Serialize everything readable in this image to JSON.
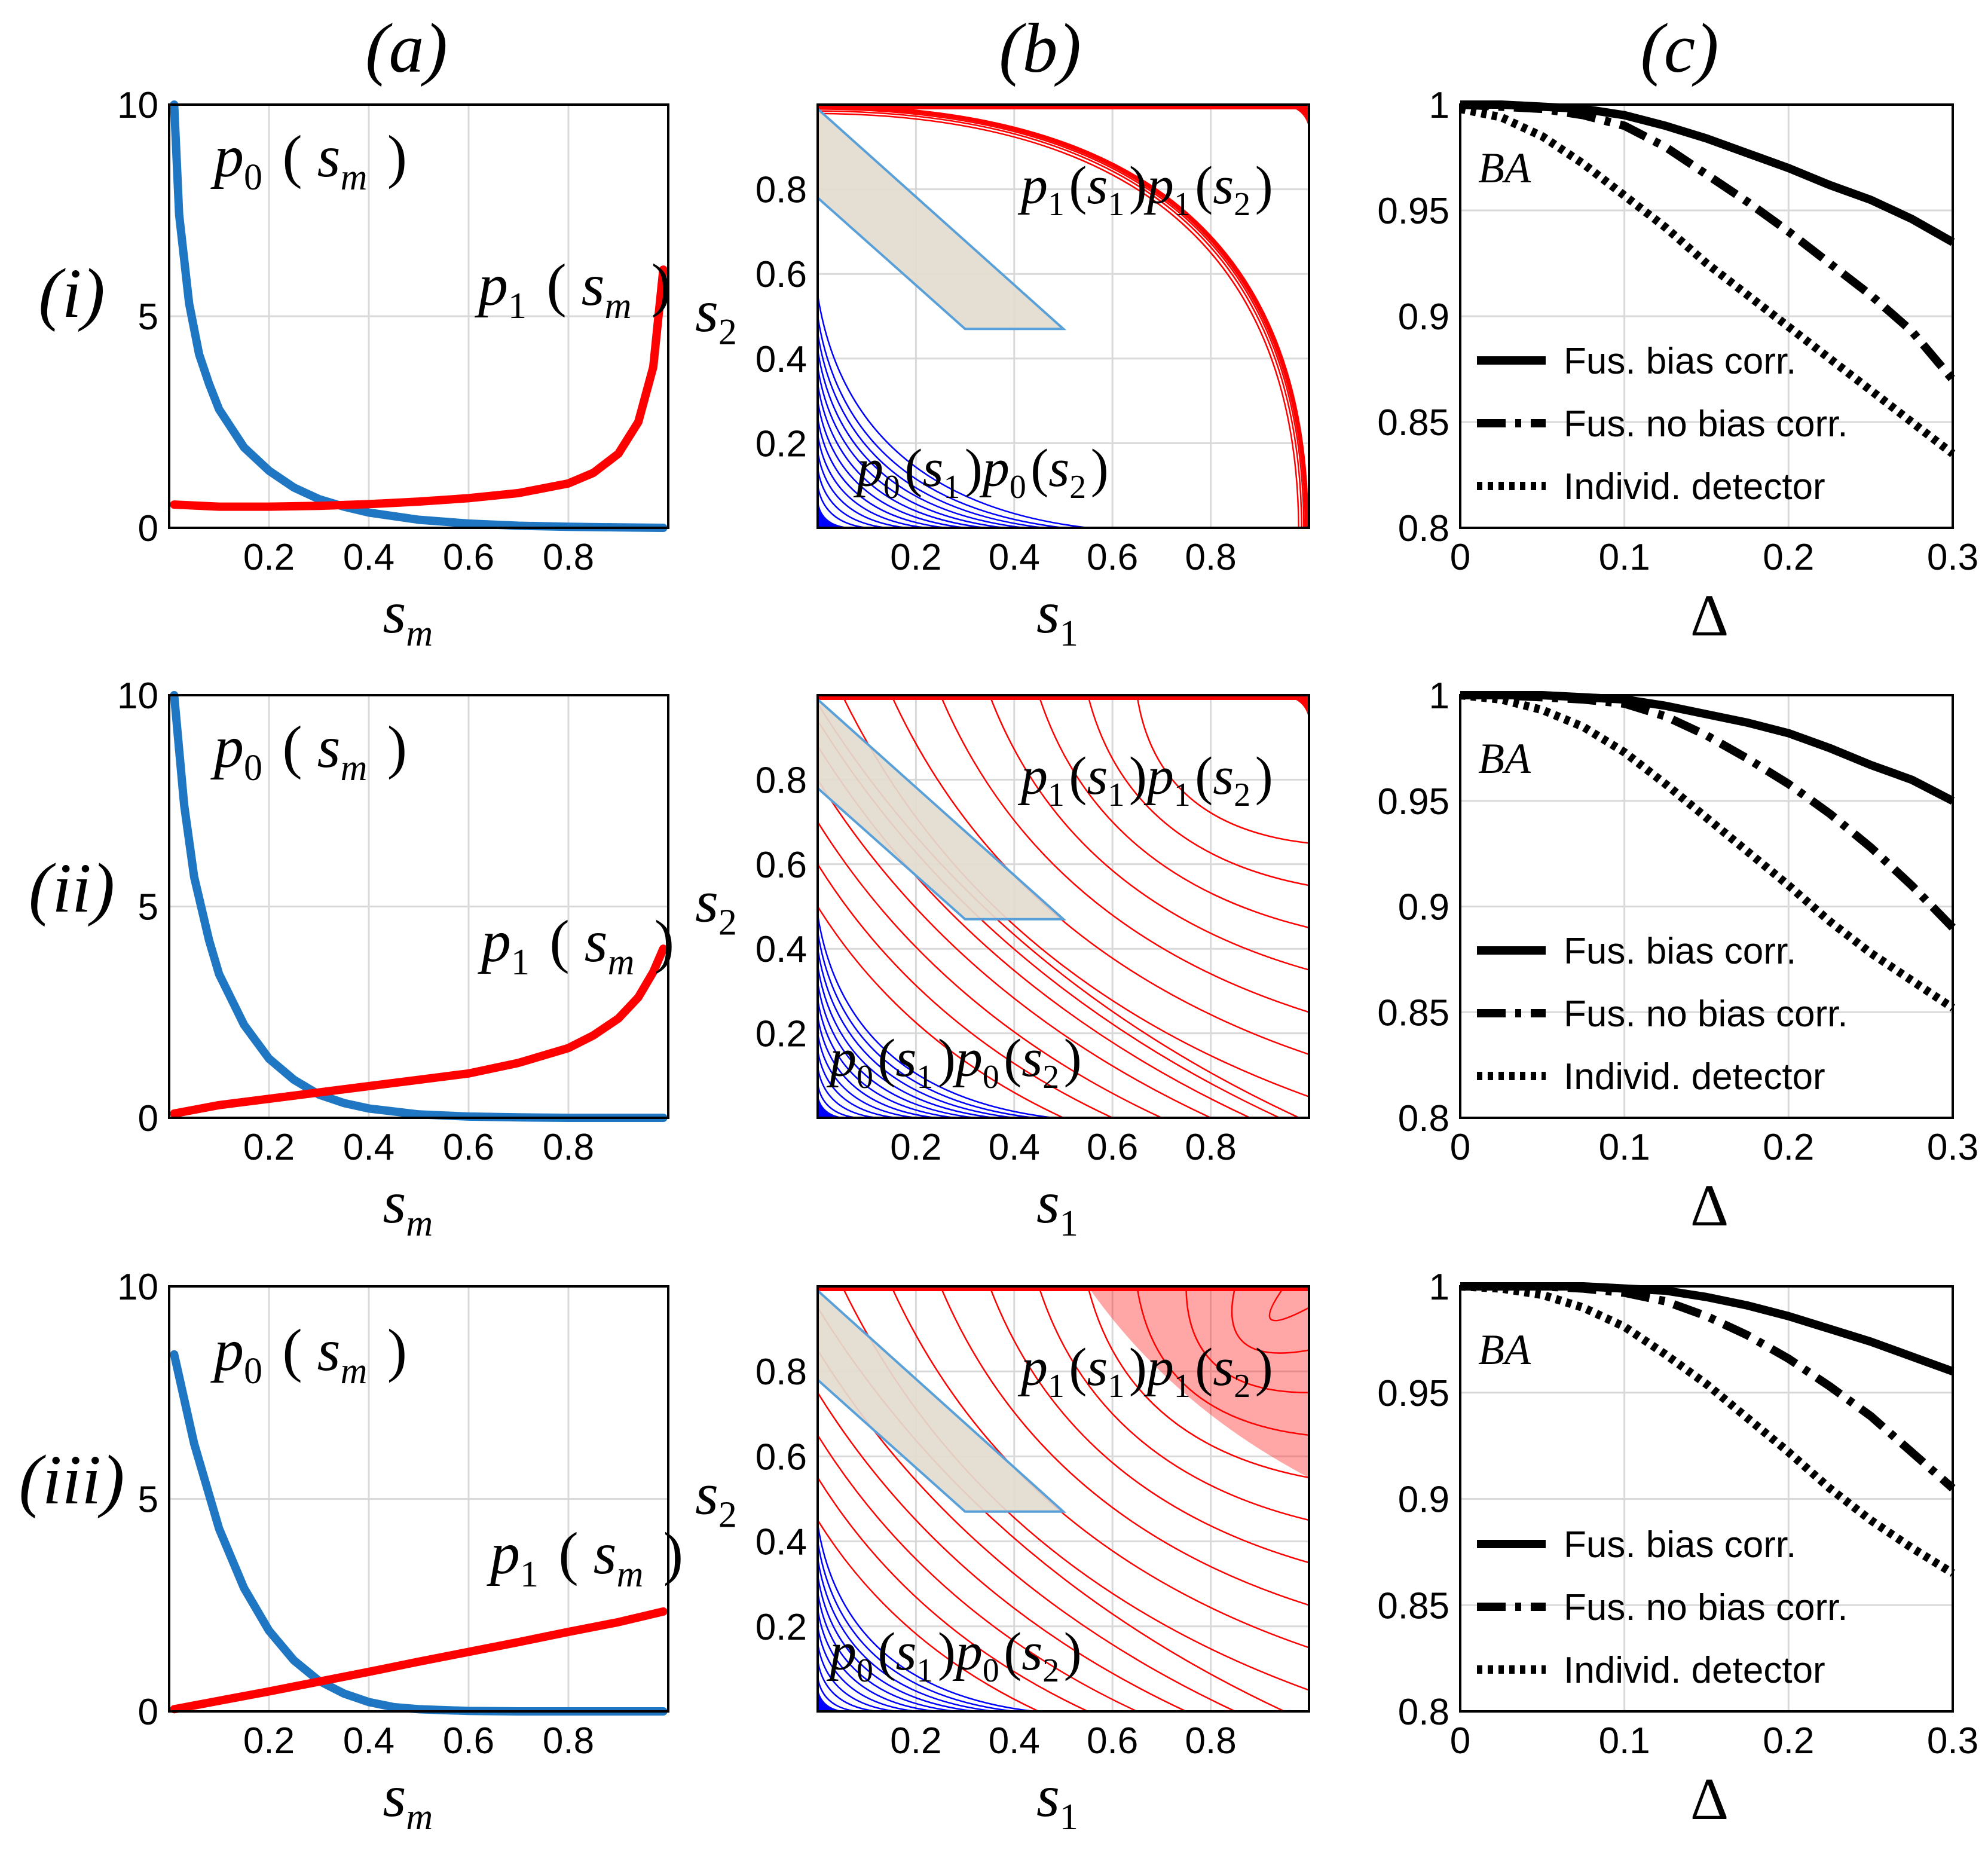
{
  "figure": {
    "column_labels": [
      "(a)",
      "(b)",
      "(c)"
    ],
    "row_labels": [
      "(i)",
      "(ii)",
      "(iii)"
    ]
  },
  "colors": {
    "p0": "#1f77c4",
    "p1": "#ff0000",
    "contour_p0": "#0000ff",
    "contour_p1": "#ff0000",
    "region_fill": "#e3dccf",
    "region_edge": "#5aa0d8",
    "grid": "#d9d9d9",
    "axis": "#000000",
    "curve": "#000000"
  },
  "chart_data": [
    {
      "id": "a_i",
      "type": "line",
      "xlabel": "s_m",
      "ylabel": "",
      "xlim": [
        0,
        1
      ],
      "ylim": [
        0,
        10
      ],
      "xticks": [
        0.2,
        0.4,
        0.6,
        0.8
      ],
      "xtick_labels": [
        "0.2",
        "0.4",
        "0.6",
        "0.8"
      ],
      "yticks": [
        0,
        5,
        10
      ],
      "ytick_labels": [
        "0",
        "5",
        "10"
      ],
      "series": [
        {
          "name": "p0(s_m)",
          "color_key": "p0",
          "x": [
            0.01,
            0.02,
            0.04,
            0.06,
            0.08,
            0.1,
            0.15,
            0.2,
            0.25,
            0.3,
            0.35,
            0.4,
            0.5,
            0.6,
            0.7,
            0.8,
            0.9,
            0.99
          ],
          "y": [
            10,
            7.4,
            5.3,
            4.1,
            3.4,
            2.8,
            1.9,
            1.35,
            0.95,
            0.68,
            0.5,
            0.36,
            0.19,
            0.1,
            0.05,
            0.025,
            0.01,
            0.0
          ]
        },
        {
          "name": "p1(s_m)",
          "color_key": "p1",
          "x": [
            0.01,
            0.1,
            0.2,
            0.3,
            0.4,
            0.5,
            0.6,
            0.7,
            0.8,
            0.85,
            0.9,
            0.94,
            0.97,
            0.99
          ],
          "y": [
            0.55,
            0.5,
            0.5,
            0.52,
            0.56,
            0.62,
            0.7,
            0.82,
            1.05,
            1.3,
            1.75,
            2.5,
            3.8,
            6.1
          ]
        }
      ],
      "annotations": [
        "p0(s_m)",
        "p1(s_m)"
      ]
    },
    {
      "id": "a_ii",
      "type": "line",
      "xlabel": "s_m",
      "ylabel": "",
      "xlim": [
        0,
        1
      ],
      "ylim": [
        0,
        10
      ],
      "xticks": [
        0.2,
        0.4,
        0.6,
        0.8
      ],
      "xtick_labels": [
        "0.2",
        "0.4",
        "0.6",
        "0.8"
      ],
      "yticks": [
        0,
        5,
        10
      ],
      "ytick_labels": [
        "0",
        "5",
        "10"
      ],
      "series": [
        {
          "name": "p0(s_m)",
          "color_key": "p0",
          "x": [
            0.01,
            0.03,
            0.05,
            0.08,
            0.1,
            0.15,
            0.2,
            0.25,
            0.3,
            0.35,
            0.4,
            0.5,
            0.6,
            0.7,
            0.8,
            0.99
          ],
          "y": [
            10,
            7.4,
            5.7,
            4.2,
            3.4,
            2.2,
            1.4,
            0.9,
            0.55,
            0.35,
            0.22,
            0.08,
            0.03,
            0.01,
            0.0,
            0.0
          ]
        },
        {
          "name": "p1(s_m)",
          "color_key": "p1",
          "x": [
            0.01,
            0.1,
            0.2,
            0.3,
            0.4,
            0.5,
            0.6,
            0.7,
            0.8,
            0.85,
            0.9,
            0.94,
            0.97,
            0.99
          ],
          "y": [
            0.1,
            0.3,
            0.45,
            0.6,
            0.75,
            0.9,
            1.05,
            1.3,
            1.65,
            1.95,
            2.35,
            2.85,
            3.45,
            4.0
          ]
        }
      ],
      "annotations": [
        "p0(s_m)",
        "p1(s_m)"
      ]
    },
    {
      "id": "a_iii",
      "type": "line",
      "xlabel": "s_m",
      "ylabel": "",
      "xlim": [
        0,
        1
      ],
      "ylim": [
        0,
        10
      ],
      "xticks": [
        0.2,
        0.4,
        0.6,
        0.8
      ],
      "xtick_labels": [
        "0.2",
        "0.4",
        "0.6",
        "0.8"
      ],
      "yticks": [
        0,
        5,
        10
      ],
      "ytick_labels": [
        "0",
        "5",
        "10"
      ],
      "series": [
        {
          "name": "p0(s_m)",
          "color_key": "p0",
          "x": [
            0.01,
            0.05,
            0.1,
            0.15,
            0.2,
            0.25,
            0.3,
            0.35,
            0.4,
            0.45,
            0.5,
            0.6,
            0.7,
            0.99
          ],
          "y": [
            8.4,
            6.3,
            4.3,
            2.9,
            1.9,
            1.2,
            0.72,
            0.42,
            0.22,
            0.1,
            0.05,
            0.01,
            0.0,
            0.0
          ]
        },
        {
          "name": "p1(s_m)",
          "color_key": "p1",
          "x": [
            0.01,
            0.1,
            0.2,
            0.3,
            0.4,
            0.5,
            0.6,
            0.7,
            0.8,
            0.9,
            0.99
          ],
          "y": [
            0.05,
            0.25,
            0.47,
            0.7,
            0.93,
            1.17,
            1.4,
            1.63,
            1.87,
            2.1,
            2.35
          ]
        }
      ],
      "annotations": [
        "p0(s_m)",
        "p1(s_m)"
      ]
    },
    {
      "id": "b_i",
      "type": "contour",
      "xlabel": "s_1",
      "ylabel": "s_2",
      "xlim": [
        0,
        1
      ],
      "ylim": [
        0,
        1
      ],
      "xticks": [
        0.2,
        0.4,
        0.6,
        0.8
      ],
      "xtick_labels": [
        "0.2",
        "0.4",
        "0.6",
        "0.8"
      ],
      "yticks": [
        0.2,
        0.4,
        0.6,
        0.8
      ],
      "ytick_labels": [
        "0.2",
        "0.4",
        "0.6",
        "0.8"
      ],
      "p0_contour_ends": [
        0.55,
        0.5,
        0.46,
        0.42,
        0.38,
        0.34,
        0.3,
        0.26,
        0.22,
        0.18,
        0.14,
        0.1,
        0.06
      ],
      "p1_contour_ends": [
        0.86,
        0.9,
        0.93,
        0.95,
        0.965,
        0.975,
        0.985
      ],
      "region_polygon": [
        [
          0.0,
          1.0
        ],
        [
          0.0,
          0.78
        ],
        [
          0.3,
          0.47
        ],
        [
          0.5,
          0.47
        ],
        [
          0.0,
          0.99
        ]
      ],
      "annotations": [
        "p1(s1)p1(s2)",
        "p0(s1)p0(s2)"
      ]
    },
    {
      "id": "b_ii",
      "type": "contour",
      "xlabel": "s_1",
      "ylabel": "s_2",
      "xlim": [
        0,
        1
      ],
      "ylim": [
        0,
        1
      ],
      "xticks": [
        0.2,
        0.4,
        0.6,
        0.8
      ],
      "xtick_labels": [
        "0.2",
        "0.4",
        "0.6",
        "0.8"
      ],
      "yticks": [
        0.2,
        0.4,
        0.6,
        0.8
      ],
      "ytick_labels": [
        "0.2",
        "0.4",
        "0.6",
        "0.8"
      ],
      "p0_contour_ends": [
        0.48,
        0.44,
        0.4,
        0.36,
        0.32,
        0.28,
        0.24,
        0.2,
        0.16,
        0.12,
        0.08
      ],
      "p1_contour_ends": [
        0.5,
        0.6,
        0.7,
        0.8,
        0.88,
        0.94,
        0.98,
        1.05,
        1.15,
        1.25,
        1.35,
        1.45,
        1.55,
        1.65
      ],
      "region_polygon": [
        [
          0.0,
          1.0
        ],
        [
          0.0,
          0.78
        ],
        [
          0.3,
          0.47
        ],
        [
          0.5,
          0.47
        ],
        [
          0.0,
          0.99
        ]
      ],
      "annotations": [
        "p1(s1)p1(s2)",
        "p0(s1)p0(s2)"
      ]
    },
    {
      "id": "b_iii",
      "type": "contour",
      "xlabel": "s_1",
      "ylabel": "s_2",
      "xlim": [
        0,
        1
      ],
      "ylim": [
        0,
        1
      ],
      "xticks": [
        0.2,
        0.4,
        0.6,
        0.8
      ],
      "xtick_labels": [
        "0.2",
        "0.4",
        "0.6",
        "0.8"
      ],
      "yticks": [
        0.2,
        0.4,
        0.6,
        0.8
      ],
      "ytick_labels": [
        "0.2",
        "0.4",
        "0.6",
        "0.8"
      ],
      "p0_contour_ends": [
        0.44,
        0.4,
        0.36,
        0.32,
        0.28,
        0.24,
        0.2,
        0.16,
        0.12,
        0.08
      ],
      "p1_contour_ends": [
        0.45,
        0.55,
        0.65,
        0.75,
        0.85,
        0.95,
        1.05,
        1.15,
        1.25,
        1.35,
        1.45,
        1.55,
        1.65,
        1.75,
        1.85,
        1.95
      ],
      "region_polygon": [
        [
          0.0,
          1.0
        ],
        [
          0.0,
          0.78
        ],
        [
          0.3,
          0.47
        ],
        [
          0.5,
          0.47
        ],
        [
          0.0,
          0.99
        ]
      ],
      "annotations": [
        "p1(s1)p1(s2)",
        "p0(s1)p0(s2)"
      ]
    },
    {
      "id": "c_i",
      "type": "line",
      "xlabel": "Δ",
      "ylabel": "BA",
      "xlim": [
        0,
        0.3
      ],
      "ylim": [
        0.8,
        1
      ],
      "xticks": [
        0,
        0.1,
        0.2,
        0.3
      ],
      "xtick_labels": [
        "0",
        "0.1",
        "0.2",
        "0.3"
      ],
      "yticks": [
        0.8,
        0.85,
        0.9,
        0.95,
        1
      ],
      "ytick_labels": [
        "0.8",
        "0.85",
        "0.9",
        "0.95",
        "1"
      ],
      "x": [
        0,
        0.025,
        0.05,
        0.075,
        0.1,
        0.125,
        0.15,
        0.175,
        0.2,
        0.225,
        0.25,
        0.275,
        0.3
      ],
      "series": [
        {
          "name": "Fus. bias corr.",
          "style": "solid",
          "values": [
            1.0,
            1.0,
            0.999,
            0.998,
            0.995,
            0.99,
            0.984,
            0.977,
            0.97,
            0.962,
            0.955,
            0.946,
            0.935
          ]
        },
        {
          "name": "Fus. no bias corr.",
          "style": "dashdot",
          "values": [
            1.0,
            0.999,
            0.998,
            0.995,
            0.99,
            0.98,
            0.967,
            0.954,
            0.94,
            0.925,
            0.91,
            0.893,
            0.87
          ]
        },
        {
          "name": "Individ. detector",
          "style": "dotted",
          "values": [
            0.998,
            0.994,
            0.985,
            0.972,
            0.957,
            0.942,
            0.925,
            0.91,
            0.895,
            0.88,
            0.865,
            0.85,
            0.835
          ]
        }
      ],
      "legend": [
        "Fus. bias corr.",
        "Fus. no bias corr.",
        "Individ. detector"
      ]
    },
    {
      "id": "c_ii",
      "type": "line",
      "xlabel": "Δ",
      "ylabel": "BA",
      "xlim": [
        0,
        0.3
      ],
      "ylim": [
        0.8,
        1
      ],
      "xticks": [
        0,
        0.1,
        0.2,
        0.3
      ],
      "xtick_labels": [
        "0",
        "0.1",
        "0.2",
        "0.3"
      ],
      "yticks": [
        0.8,
        0.85,
        0.9,
        0.95,
        1
      ],
      "ytick_labels": [
        "0.8",
        "0.85",
        "0.9",
        "0.95",
        "1"
      ],
      "x": [
        0,
        0.025,
        0.05,
        0.075,
        0.1,
        0.125,
        0.15,
        0.175,
        0.2,
        0.225,
        0.25,
        0.275,
        0.3
      ],
      "series": [
        {
          "name": "Fus. bias corr.",
          "style": "solid",
          "values": [
            1.0,
            1.0,
            1.0,
            0.999,
            0.998,
            0.995,
            0.991,
            0.987,
            0.982,
            0.975,
            0.967,
            0.96,
            0.95
          ]
        },
        {
          "name": "Fus. no bias corr.",
          "style": "dashdot",
          "values": [
            1.0,
            1.0,
            0.999,
            0.998,
            0.996,
            0.99,
            0.981,
            0.97,
            0.958,
            0.944,
            0.928,
            0.91,
            0.89
          ]
        },
        {
          "name": "Individ. detector",
          "style": "dotted",
          "values": [
            1.0,
            0.998,
            0.993,
            0.985,
            0.973,
            0.958,
            0.942,
            0.926,
            0.91,
            0.893,
            0.878,
            0.865,
            0.852
          ]
        }
      ],
      "legend": [
        "Fus. bias corr.",
        "Fus. no bias corr.",
        "Individ. detector"
      ]
    },
    {
      "id": "c_iii",
      "type": "line",
      "xlabel": "Δ",
      "ylabel": "BA",
      "xlim": [
        0,
        0.3
      ],
      "ylim": [
        0.8,
        1
      ],
      "xticks": [
        0,
        0.1,
        0.2,
        0.3
      ],
      "xtick_labels": [
        "0",
        "0.1",
        "0.2",
        "0.3"
      ],
      "yticks": [
        0.8,
        0.85,
        0.9,
        0.95,
        1
      ],
      "ytick_labels": [
        "0.8",
        "0.85",
        "0.9",
        "0.95",
        "1"
      ],
      "x": [
        0,
        0.025,
        0.05,
        0.075,
        0.1,
        0.125,
        0.15,
        0.175,
        0.2,
        0.225,
        0.25,
        0.275,
        0.3
      ],
      "series": [
        {
          "name": "Fus. bias corr.",
          "style": "solid",
          "values": [
            1.0,
            1.0,
            1.0,
            1.0,
            0.999,
            0.998,
            0.995,
            0.991,
            0.986,
            0.98,
            0.974,
            0.967,
            0.96
          ]
        },
        {
          "name": "Fus. no bias corr.",
          "style": "dashdot",
          "values": [
            1.0,
            1.0,
            1.0,
            0.999,
            0.997,
            0.993,
            0.986,
            0.977,
            0.966,
            0.953,
            0.939,
            0.922,
            0.905
          ]
        },
        {
          "name": "Individ. detector",
          "style": "dotted",
          "values": [
            1.0,
            0.999,
            0.996,
            0.99,
            0.981,
            0.968,
            0.954,
            0.938,
            0.922,
            0.905,
            0.89,
            0.877,
            0.865
          ]
        }
      ],
      "legend": [
        "Fus. bias corr.",
        "Fus. no bias corr.",
        "Individ. detector"
      ]
    }
  ]
}
